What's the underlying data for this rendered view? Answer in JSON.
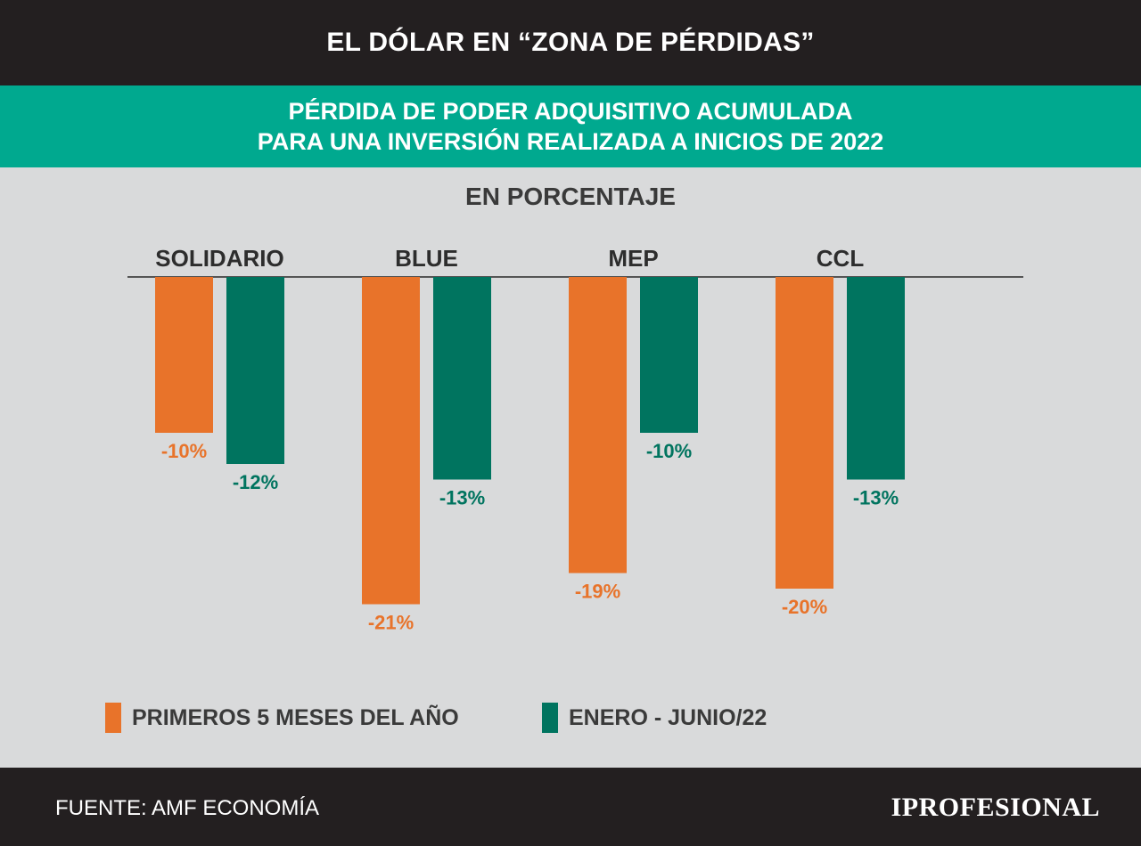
{
  "header": {
    "title": "EL DÓLAR EN “ZONA DE PÉRDIDAS”",
    "subtitle_line1": "PÉRDIDA DE PODER ADQUISITIVO ACUMULADA",
    "subtitle_line2": "PARA UNA INVERSIÓN REALIZADA A INICIOS DE 2022"
  },
  "unit_label": "EN PORCENTAJE",
  "chart_data": {
    "type": "bar",
    "title": "PÉRDIDA DE PODER ADQUISITIVO ACUMULADA PARA UNA INVERSIÓN REALIZADA A INICIOS DE 2022",
    "subtitle": "EN PORCENTAJE",
    "categories": [
      "SOLIDARIO",
      "BLUE",
      "MEP",
      "CCL"
    ],
    "series": [
      {
        "name": "PRIMEROS 5 MESES DEL AÑO",
        "color": "#e8732a",
        "values": [
          -10,
          -21,
          -19,
          -20
        ],
        "labels": [
          "-10%",
          "-21%",
          "-19%",
          "-20%"
        ]
      },
      {
        "name": "ENERO - JUNIO/22",
        "color": "#00745f",
        "values": [
          -12,
          -13,
          -10,
          -13
        ],
        "labels": [
          "-12%",
          "-13%",
          "-10%",
          "-13%"
        ]
      }
    ],
    "ylim": [
      -21,
      0
    ],
    "grid": false,
    "legend": "bottom"
  },
  "legend": {
    "item1": "PRIMEROS 5 MESES DEL AÑO",
    "item2": "ENERO - JUNIO/22"
  },
  "footer": {
    "source": "FUENTE: AMF ECONOMÍA",
    "brand": "IPROFESIONAL"
  },
  "colors": {
    "header_bg": "#231f20",
    "teal": "#00a98f",
    "orange": "#e8732a",
    "green": "#00745f",
    "background": "#d9dadb"
  }
}
